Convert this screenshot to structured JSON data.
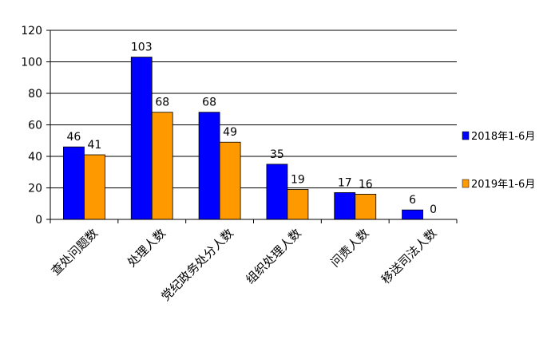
{
  "chart_data": {
    "type": "bar",
    "categories": [
      "查处问题数",
      "处理人数",
      "党纪政务处分人数",
      "组织处理人数",
      "问责人数",
      "移送司法人数"
    ],
    "series": [
      {
        "name": "2018年1-6月",
        "values": [
          46,
          103,
          68,
          35,
          17,
          6
        ],
        "color": "#0000ff"
      },
      {
        "name": "2019年1-6月",
        "values": [
          41,
          68,
          49,
          19,
          16,
          0
        ],
        "color": "#ff9900"
      }
    ],
    "yticks": [
      "0",
      "20",
      "40",
      "60",
      "80",
      "100",
      "120"
    ],
    "ylim": [
      0,
      120
    ],
    "grid": true,
    "legend_position": "right",
    "title": "",
    "xlabel": "",
    "ylabel": ""
  }
}
